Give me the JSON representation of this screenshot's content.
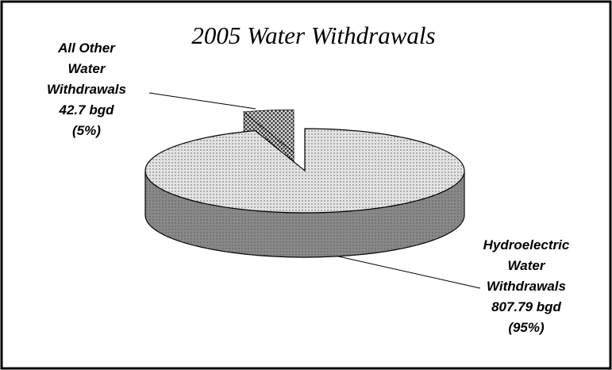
{
  "chart_data": {
    "type": "pie",
    "title": "2005 Water Withdrawals",
    "categories": [
      "All Other Water Withdrawals",
      "Hydroelectric Water Withdrawals"
    ],
    "values": [
      42.7,
      807.79
    ],
    "value_labels": [
      "42.7 bgd",
      "807.79 bgd"
    ],
    "percent_labels": [
      "(5%)",
      "(95%)"
    ],
    "colors": [
      "#3a3a3a",
      "#e4e4e4"
    ]
  }
}
